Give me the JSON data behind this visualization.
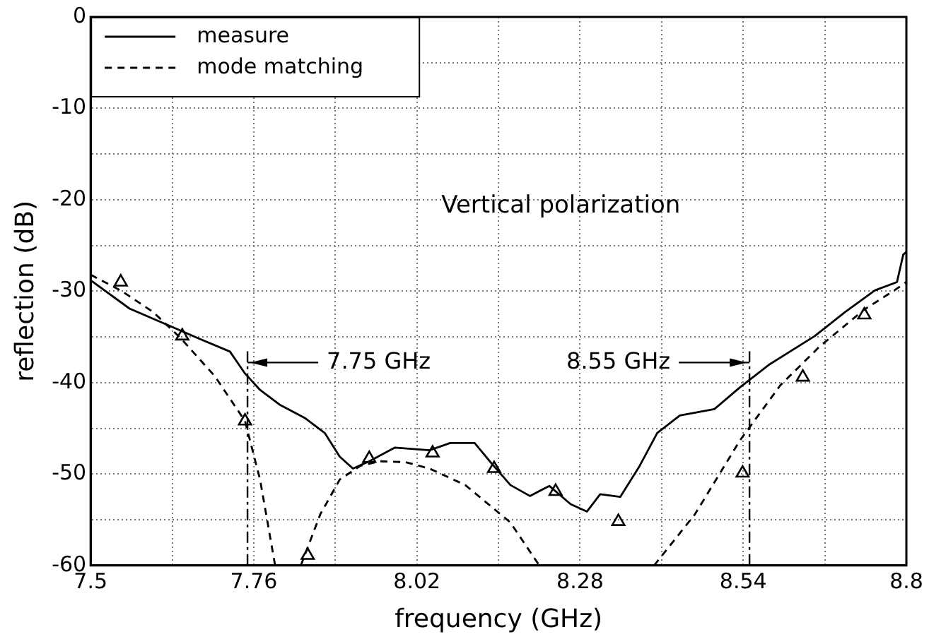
{
  "chart_data": {
    "type": "line",
    "xlabel": "frequency (GHz)",
    "ylabel": "reflection (dB)",
    "xlim": [
      7.5,
      8.8
    ],
    "ylim": [
      -60,
      0
    ],
    "xticks": [
      7.5,
      {
        "value": 7.63,
        "label": null
      },
      7.76,
      {
        "value": 7.89,
        "label": null
      },
      8.02,
      {
        "value": 8.15,
        "label": null
      },
      8.28,
      {
        "value": 8.41,
        "label": null
      },
      8.54,
      {
        "value": 8.67,
        "label": null
      },
      8.8
    ],
    "yticks": [
      -60,
      {
        "value": -55,
        "label": null
      },
      -50,
      {
        "value": -45,
        "label": null
      },
      -40,
      {
        "value": -35,
        "label": null
      },
      -30,
      {
        "value": -25,
        "label": null
      },
      -20,
      {
        "value": -15,
        "label": null
      },
      -10,
      {
        "value": -5,
        "label": null
      },
      0
    ],
    "grid": true,
    "legend": "top left",
    "annotations": [
      "Vertical polarization"
    ],
    "ref_lines": [
      {
        "axis": "x",
        "value": 7.75,
        "label": "7.75 GHz",
        "color": "#000000",
        "line_style": "dashdot"
      },
      {
        "axis": "x",
        "value": 8.55,
        "label": "8.55 GHz",
        "color": "#000000",
        "line_style": "dashdot"
      }
    ],
    "series": [
      {
        "name": "measure",
        "type": "line",
        "color": "#000000",
        "line_style": "solid",
        "marker": "none",
        "x": [
          7.5,
          7.562,
          7.643,
          7.67,
          7.722,
          7.746,
          7.77,
          7.801,
          7.842,
          7.873,
          7.897,
          7.918,
          7.944,
          7.985,
          8.04,
          8.073,
          8.112,
          8.136,
          8.169,
          8.2,
          8.231,
          8.265,
          8.291,
          8.312,
          8.344,
          8.375,
          8.403,
          8.439,
          8.494,
          8.535,
          8.582,
          8.654,
          8.702,
          8.75,
          8.785,
          8.795,
          8.8
        ],
        "values": [
          -28.8,
          -31.9,
          -34.3,
          -35.1,
          -36.6,
          -39,
          -40.8,
          -42.4,
          -43.9,
          -45.5,
          -48.1,
          -49.4,
          -48.6,
          -47.1,
          -47.4,
          -46.6,
          -46.6,
          -48.6,
          -51.2,
          -52.4,
          -51.3,
          -53.3,
          -54.1,
          -52.2,
          -52.5,
          -49.1,
          -45.5,
          -43.6,
          -42.9,
          -40.5,
          -38,
          -34.9,
          -32.3,
          -29.9,
          -29,
          -26,
          -25.7
        ]
      },
      {
        "name": "mode matching",
        "type": "line",
        "color": "#000000",
        "line_style": "dashed",
        "marker": "none",
        "x": [
          7.5,
          7.55,
          7.6,
          7.643,
          7.698,
          7.746,
          7.77,
          7.794,
          7.815,
          7.835,
          7.866,
          7.897,
          7.93,
          7.961,
          8.002,
          8.04,
          8.097,
          8.169,
          8.215,
          8.3,
          8.398,
          8.463,
          8.535,
          8.599,
          8.661,
          8.733,
          8.781,
          8.8
        ],
        "values": [
          -28.2,
          -30,
          -32.3,
          -35.1,
          -39.3,
          -44.2,
          -50.6,
          -60,
          null,
          -60,
          -54.4,
          -50.6,
          -49.1,
          -48.6,
          -48.7,
          -49.4,
          -51.2,
          -55.3,
          -60,
          null,
          -60,
          -54.4,
          -46.3,
          -40.3,
          -36.1,
          -32,
          -29.9,
          -29
        ]
      },
      {
        "type": "scatter",
        "color": "#000000",
        "marker": "triangle",
        "x": [
          7.548,
          7.646,
          7.746,
          7.846,
          7.944,
          8.045,
          8.143,
          8.241,
          8.341,
          8.539,
          8.635,
          8.733
        ],
        "values": [
          -29,
          -34.9,
          -44.2,
          -58.9,
          -48.3,
          -47.7,
          -49.4,
          -51.9,
          -55.2,
          -49.9,
          -39.4,
          -32.6
        ]
      }
    ]
  }
}
